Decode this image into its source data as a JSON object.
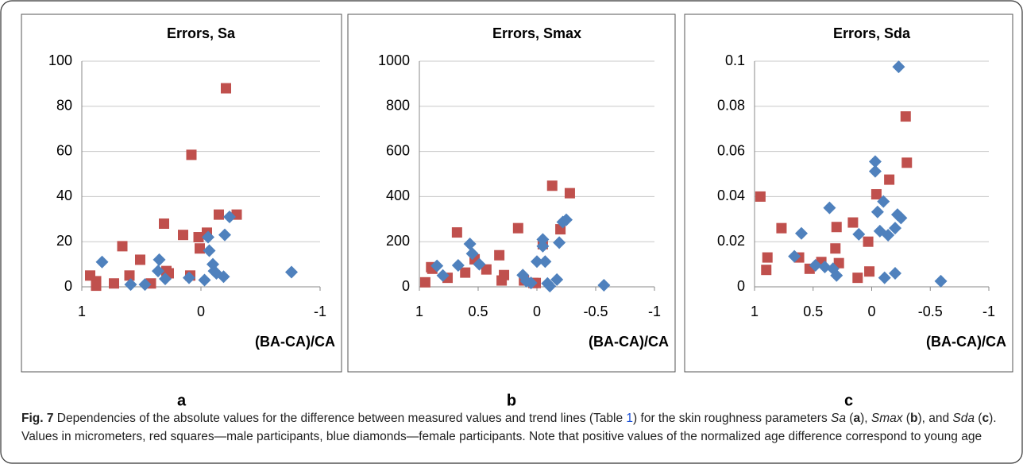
{
  "chart_data": [
    {
      "type": "scatter",
      "title": "Errors, Sa",
      "x_label": "(BA-CA)/CA",
      "panel_label": "a",
      "xlim": [
        1,
        -1
      ],
      "xticks": [
        1,
        0,
        -1
      ],
      "ylim": [
        0,
        100
      ],
      "yticks": [
        0,
        20,
        40,
        60,
        80,
        100
      ],
      "grid": true,
      "series": [
        {
          "color": "#c0504d",
          "marker": "square",
          "x": [
            0.93,
            0.88,
            0.88,
            0.73,
            0.66,
            0.6,
            0.51,
            0.42,
            0.31,
            0.29,
            0.27,
            0.15,
            0.09,
            0.08,
            0.02,
            0.01,
            -0.05,
            -0.15,
            -0.21,
            -0.3
          ],
          "values": [
            5,
            2.5,
            0.5,
            1.5,
            18,
            5,
            12,
            1.5,
            28,
            7,
            6,
            23,
            5,
            58.5,
            22,
            17,
            24,
            32,
            88,
            32
          ]
        },
        {
          "color": "#4f81bd",
          "marker": "diamond",
          "x": [
            0.83,
            0.59,
            0.47,
            0.35,
            0.36,
            0.3,
            0.1,
            -0.03,
            -0.07,
            -0.06,
            -0.1,
            -0.11,
            -0.13,
            -0.2,
            -0.24,
            -0.19,
            -0.76
          ],
          "values": [
            11,
            1,
            1,
            12,
            7,
            3.5,
            4,
            3,
            16,
            22,
            10,
            7,
            6,
            23,
            31,
            4.5,
            6.5
          ]
        }
      ]
    },
    {
      "type": "scatter",
      "title": "Errors, Smax",
      "x_label": "(BA-CA)/CA",
      "panel_label": "b",
      "xlim": [
        1,
        -1
      ],
      "xticks": [
        1,
        0.5,
        0,
        -0.5,
        -1
      ],
      "ylim": [
        0,
        1000
      ],
      "yticks": [
        0,
        200,
        400,
        600,
        800,
        1000
      ],
      "grid": true,
      "series": [
        {
          "color": "#c0504d",
          "marker": "square",
          "x": [
            0.95,
            0.9,
            0.89,
            0.76,
            0.68,
            0.61,
            0.53,
            0.43,
            0.32,
            0.3,
            0.28,
            0.16,
            0.11,
            0.03,
            0.01,
            -0.05,
            -0.13,
            -0.2,
            -0.28
          ],
          "values": [
            20,
            87,
            80,
            40,
            241,
            63,
            122,
            77,
            140,
            28,
            52,
            260,
            28,
            17,
            17,
            189,
            448,
            255,
            415
          ]
        },
        {
          "color": "#4f81bd",
          "marker": "diamond",
          "x": [
            0.85,
            0.8,
            0.67,
            0.57,
            0.55,
            0.49,
            0.12,
            0.09,
            0.05,
            0,
            -0.05,
            -0.07,
            -0.05,
            -0.09,
            -0.11,
            -0.17,
            -0.19,
            -0.22,
            -0.25,
            -0.57
          ],
          "values": [
            93,
            50,
            95,
            190,
            147,
            100,
            52,
            25,
            17,
            112,
            210,
            112,
            180,
            15,
            3,
            32,
            196,
            287,
            297,
            7
          ]
        }
      ]
    },
    {
      "type": "scatter",
      "title": "Errors, Sda",
      "x_label": "(BA-CA)/CA",
      "panel_label": "c",
      "xlim": [
        1,
        -1
      ],
      "xticks": [
        1,
        0.5,
        0,
        -0.5,
        -1
      ],
      "ylim": [
        0,
        0.1
      ],
      "yticks": [
        0,
        0.02,
        0.04,
        0.06,
        0.08,
        0.1
      ],
      "grid": true,
      "series": [
        {
          "color": "#c0504d",
          "marker": "square",
          "x": [
            0.95,
            0.9,
            0.89,
            0.77,
            0.62,
            0.53,
            0.43,
            0.31,
            0.3,
            0.28,
            0.16,
            0.12,
            0.03,
            0.02,
            -0.04,
            -0.15,
            -0.29,
            -0.3
          ],
          "values": [
            0.04,
            0.0075,
            0.013,
            0.026,
            0.013,
            0.008,
            0.011,
            0.017,
            0.0265,
            0.0105,
            0.0285,
            0.004,
            0.02,
            0.0068,
            0.041,
            0.0475,
            0.0755,
            0.055
          ]
        },
        {
          "color": "#4f81bd",
          "marker": "diamond",
          "x": [
            0.66,
            0.6,
            0.48,
            0.4,
            0.36,
            0.33,
            0.3,
            0.11,
            -0.03,
            -0.03,
            -0.05,
            -0.07,
            -0.1,
            -0.11,
            -0.14,
            -0.2,
            -0.2,
            -0.22,
            -0.25,
            -0.23,
            -0.59
          ],
          "values": [
            0.0135,
            0.0237,
            0.0095,
            0.0088,
            0.035,
            0.008,
            0.005,
            0.0233,
            0.0555,
            0.0512,
            0.0332,
            0.0247,
            0.0378,
            0.004,
            0.0229,
            0.026,
            0.006,
            0.032,
            0.0305,
            0.0975,
            0.0025
          ]
        }
      ]
    }
  ],
  "caption": {
    "label": "Fig. 7",
    "parts": [
      " Dependencies of the absolute values for the difference between measured values and trend lines (Table ",
      "1",
      ") for the skin roughness parameters ",
      "Sa",
      " (",
      "a",
      "), ",
      "Smax",
      " (",
      "b",
      "), and ",
      "Sda",
      " (",
      "c",
      "). Values in micrometers, red squares—male participants, blue diamonds—female participants. Note that positive values of the normalized age difference correspond to young age"
    ]
  }
}
